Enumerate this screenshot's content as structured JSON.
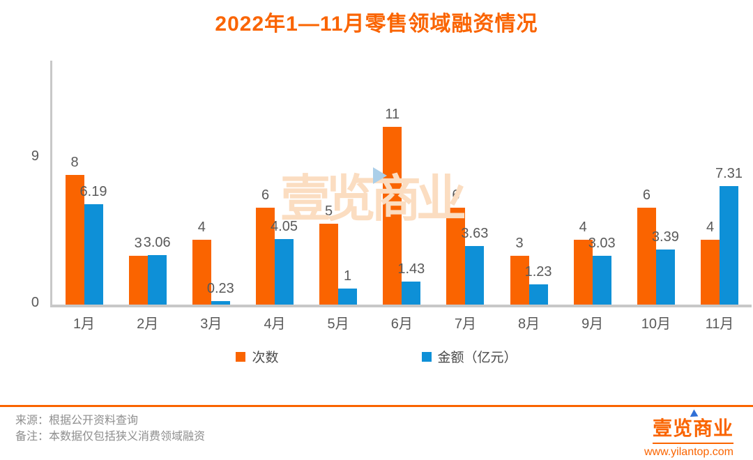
{
  "title": "2022年1—11月零售领域融资情况",
  "chart_data": {
    "type": "bar",
    "title": "2022年1—11月零售领域融资情况",
    "categories": [
      "1月",
      "2月",
      "3月",
      "4月",
      "5月",
      "6月",
      "7月",
      "8月",
      "9月",
      "10月",
      "11月"
    ],
    "series": [
      {
        "name": "次数",
        "color": "#fa6400",
        "values": [
          8,
          3,
          4,
          6,
          5,
          11,
          6,
          3,
          4,
          6,
          4
        ]
      },
      {
        "name": "金额（亿元）",
        "color": "#0e90d7",
        "values": [
          6.19,
          3.06,
          0.23,
          4.05,
          1,
          1.43,
          3.63,
          1.23,
          3.03,
          3.39,
          7.31
        ]
      }
    ],
    "yticks": [
      0,
      9
    ],
    "ylim": [
      0,
      13.5
    ],
    "grid": false,
    "data_labels": true,
    "legend_position": "bottom"
  },
  "legend": {
    "items": [
      {
        "label": "次数",
        "color": "#fa6400"
      },
      {
        "label": "金额（亿元）",
        "color": "#0e90d7"
      }
    ]
  },
  "watermark": {
    "text": "壹览商业"
  },
  "footer": {
    "source": "来源：根据公开资料查询",
    "note": "备注：本数据仅包括狭义消费领域融资"
  },
  "logo": {
    "name": "壹览商业",
    "url": "www.yilantop.com"
  },
  "colors": {
    "accent_orange": "#fa6400",
    "bar_blue": "#0e90d7",
    "axis_gray": "#c8c8c8",
    "label_gray": "#595959",
    "footer_gray": "#8e8e8e",
    "watermark_peach": "#fbddc1"
  }
}
